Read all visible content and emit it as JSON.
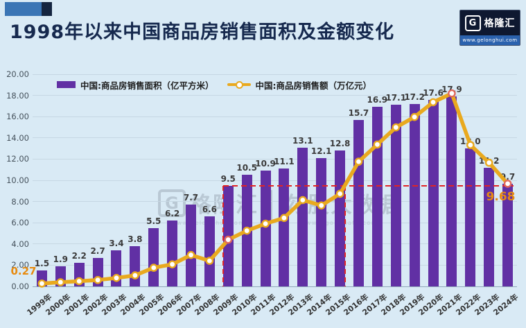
{
  "header": {
    "title": "1998年以来中国商品房销售面积及金额变化",
    "logo": {
      "monogram": "G",
      "brand": "格隆汇",
      "url": "www.gelonghui.com"
    }
  },
  "legend": {
    "bar_label": "中国:商品房销售面积（亿平方米）",
    "line_label": "中国:商品房销售额（万亿元）"
  },
  "watermark": {
    "brand_monogram": "G",
    "brand": "格隆汇",
    "brand_url": "www.gelonghui.com",
    "partner": "勾股大数据",
    "partner_url": "www.gogudata.com"
  },
  "chart_data": {
    "type": "bar",
    "title": "1998年以来中国商品房销售面积及金额变化",
    "categories": [
      "1999年",
      "2000年",
      "2001年",
      "2002年",
      "2003年",
      "2004年",
      "2005年",
      "2006年",
      "2007年",
      "2008年",
      "2009年",
      "2010年",
      "2011年",
      "2012年",
      "2013年",
      "2014年",
      "2015年",
      "2016年",
      "2017年",
      "2018年",
      "2019年",
      "2020年",
      "2021年",
      "2022年",
      "2023年",
      "2024年"
    ],
    "series": [
      {
        "name": "中国:商品房销售面积（亿平方米）",
        "type": "bar",
        "color": "#6130a4",
        "values": [
          1.5,
          1.9,
          2.2,
          2.7,
          3.4,
          3.8,
          5.5,
          6.2,
          7.7,
          6.6,
          9.5,
          10.5,
          10.9,
          11.1,
          13.1,
          12.1,
          12.8,
          15.7,
          16.9,
          17.1,
          17.2,
          17.6,
          17.9,
          13.0,
          11.2,
          9.7
        ],
        "labels": [
          "1.5",
          "1.9",
          "2.2",
          "2.7",
          "3.4",
          "3.8",
          "5.5",
          "6.2",
          "7.7",
          "6.6",
          "9.5",
          "10.5",
          "10.9",
          "11.1",
          "13.1",
          "12.1",
          "12.8",
          "15.7",
          "16.9",
          "17.1",
          "17.2",
          "17.6",
          "17.9",
          "13.0",
          "11.2",
          "9.7"
        ]
      },
      {
        "name": "中国:商品房销售额（万亿元）",
        "type": "line",
        "color": "#e9a91e",
        "marker": "circle-white",
        "values": [
          0.27,
          0.39,
          0.49,
          0.6,
          0.8,
          1.04,
          1.76,
          2.08,
          2.96,
          2.41,
          4.4,
          5.25,
          5.91,
          6.45,
          8.14,
          7.63,
          8.73,
          11.76,
          13.37,
          14.99,
          15.97,
          17.36,
          18.19,
          13.33,
          11.66,
          9.68
        ],
        "endpoint_labels": {
          "first": "0.27",
          "last": "9.68"
        },
        "endpoint_label_color": "#e78b11"
      }
    ],
    "ylim": [
      0,
      20
    ],
    "y_ticks": [
      "0.00",
      "2.00",
      "4.00",
      "6.00",
      "8.00",
      "10.00",
      "12.00",
      "14.00",
      "16.00",
      "18.00",
      "20.00"
    ],
    "grid": true,
    "legend_position": "top-left",
    "annotations": {
      "dashed_level": 9.5,
      "dashed_color": "#e22424",
      "hline_span_indices": [
        10,
        25
      ],
      "vlines": [
        {
          "index": 10,
          "align": "bar-left"
        },
        {
          "index": 16,
          "align": "bar-right"
        }
      ],
      "highlight_marker_indices": [
        10,
        22,
        25
      ],
      "highlight_marker_color": "#e0685c"
    }
  }
}
